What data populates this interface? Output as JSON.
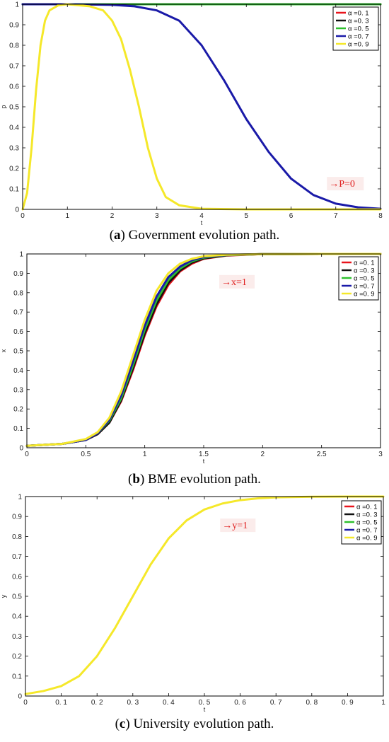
{
  "chart_data": [
    {
      "type": "line",
      "panel": "a",
      "caption": {
        "letter": "a",
        "text": "Government evolution path."
      },
      "xlabel": "t",
      "ylabel": "p",
      "xlim": [
        0,
        8
      ],
      "ylim": [
        0,
        1
      ],
      "xticks": [
        "0",
        "1",
        "2",
        "3",
        "4",
        "5",
        "6",
        "7",
        "8"
      ],
      "yticks": [
        "0",
        "0.1",
        "0.2",
        "0.3",
        "0.4",
        "0.5",
        "0.6",
        "0.7",
        "0.8",
        "0.9",
        "1"
      ],
      "legend_position": "top-right",
      "annotation": {
        "text": "→P=0",
        "x": 6.85,
        "y": 0.11
      },
      "series": [
        {
          "name": "α =0. 1",
          "color": "#e8141c",
          "x": [
            0,
            8
          ],
          "y": [
            1,
            1
          ]
        },
        {
          "name": "α =0. 3",
          "color": "#111111",
          "x": [
            0,
            8
          ],
          "y": [
            1,
            1
          ]
        },
        {
          "name": "α =0. 5",
          "color": "#2ec02e",
          "x": [
            0,
            8
          ],
          "y": [
            1,
            1
          ]
        },
        {
          "name": "α =0. 7",
          "color": "#1a1aa8",
          "x": [
            0,
            1,
            2,
            2.5,
            3,
            3.5,
            4,
            4.5,
            5,
            5.5,
            6,
            6.5,
            7,
            7.5,
            8
          ],
          "y": [
            1,
            1,
            0.997,
            0.99,
            0.97,
            0.92,
            0.8,
            0.63,
            0.44,
            0.28,
            0.15,
            0.07,
            0.028,
            0.01,
            0.003
          ]
        },
        {
          "name": "α =0. 9",
          "color": "#f5e82a",
          "x": [
            0,
            0.1,
            0.2,
            0.3,
            0.4,
            0.5,
            0.6,
            0.8,
            1,
            1.5,
            1.8,
            2,
            2.2,
            2.4,
            2.6,
            2.8,
            3,
            3.2,
            3.5,
            4,
            5,
            8
          ],
          "y": [
            0,
            0.08,
            0.3,
            0.58,
            0.8,
            0.92,
            0.97,
            0.995,
            1,
            0.99,
            0.97,
            0.92,
            0.83,
            0.68,
            0.5,
            0.3,
            0.15,
            0.06,
            0.02,
            0.003,
            0,
            0
          ]
        }
      ]
    },
    {
      "type": "line",
      "panel": "b",
      "caption": {
        "letter": "b",
        "text": "BME evolution path."
      },
      "xlabel": "t",
      "ylabel": "x",
      "xlim": [
        0,
        3
      ],
      "ylim": [
        0,
        1
      ],
      "xticks": [
        "0",
        "0.5",
        "1",
        "1.5",
        "2",
        "2.5",
        "3"
      ],
      "yticks": [
        "0",
        "0.1",
        "0.2",
        "0.3",
        "0.4",
        "0.5",
        "0.6",
        "0.7",
        "0.8",
        "0.9",
        "1"
      ],
      "legend_position": "top-right",
      "annotation": {
        "text": "→x=1",
        "x": 1.65,
        "y": 0.84
      },
      "series": [
        {
          "name": "α =0. 1",
          "color": "#e8141c",
          "x": [
            0,
            0.3,
            0.5,
            0.6,
            0.7,
            0.8,
            0.9,
            1,
            1.1,
            1.2,
            1.3,
            1.4,
            1.5,
            1.7,
            2,
            2.5,
            3
          ],
          "y": [
            0.01,
            0.02,
            0.04,
            0.07,
            0.13,
            0.24,
            0.4,
            0.58,
            0.73,
            0.84,
            0.91,
            0.95,
            0.975,
            0.992,
            0.999,
            1,
            1
          ]
        },
        {
          "name": "α =0. 3",
          "color": "#111111",
          "x": [
            0,
            0.3,
            0.5,
            0.6,
            0.7,
            0.8,
            0.9,
            1,
            1.1,
            1.2,
            1.3,
            1.4,
            1.5,
            1.7,
            2,
            2.5,
            3
          ],
          "y": [
            0.01,
            0.02,
            0.04,
            0.07,
            0.13,
            0.245,
            0.41,
            0.59,
            0.74,
            0.85,
            0.915,
            0.955,
            0.977,
            0.993,
            0.999,
            1,
            1
          ]
        },
        {
          "name": "α =0. 5",
          "color": "#2ec02e",
          "x": [
            0,
            0.3,
            0.5,
            0.6,
            0.7,
            0.8,
            0.9,
            1,
            1.1,
            1.2,
            1.3,
            1.4,
            1.5,
            1.7,
            2,
            2.5,
            3
          ],
          "y": [
            0.01,
            0.02,
            0.04,
            0.075,
            0.14,
            0.255,
            0.425,
            0.61,
            0.76,
            0.865,
            0.925,
            0.962,
            0.981,
            0.994,
            0.999,
            1,
            1
          ]
        },
        {
          "name": "α =0. 7",
          "color": "#1a1aa8",
          "x": [
            0,
            0.3,
            0.5,
            0.6,
            0.7,
            0.8,
            0.9,
            1,
            1.1,
            1.2,
            1.3,
            1.4,
            1.5,
            1.7,
            2,
            2.5,
            3
          ],
          "y": [
            0.01,
            0.02,
            0.04,
            0.075,
            0.145,
            0.27,
            0.445,
            0.63,
            0.78,
            0.88,
            0.935,
            0.968,
            0.984,
            0.995,
            0.999,
            1,
            1
          ]
        },
        {
          "name": "α =0. 9",
          "color": "#f5e82a",
          "x": [
            0,
            0.3,
            0.5,
            0.6,
            0.7,
            0.8,
            0.9,
            1,
            1.1,
            1.2,
            1.3,
            1.4,
            1.5,
            1.7,
            2,
            2.5,
            3
          ],
          "y": [
            0.01,
            0.02,
            0.045,
            0.08,
            0.155,
            0.29,
            0.475,
            0.66,
            0.81,
            0.9,
            0.95,
            0.975,
            0.988,
            0.996,
            0.999,
            1,
            1
          ]
        }
      ]
    },
    {
      "type": "line",
      "panel": "c",
      "caption": {
        "letter": "c",
        "text": "University evolution path."
      },
      "xlabel": "t",
      "ylabel": "y",
      "xlim": [
        0,
        1
      ],
      "ylim": [
        0,
        1
      ],
      "xticks": [
        "0",
        "0. 1",
        "0. 2",
        "0. 3",
        "0. 4",
        "0. 5",
        "0. 6",
        "0. 7",
        "0. 8",
        "0. 9",
        "1"
      ],
      "yticks": [
        "0",
        "0.1",
        "0.2",
        "0.3",
        "0.4",
        "0.5",
        "0.6",
        "0.7",
        "0.8",
        "0.9",
        "1"
      ],
      "legend_position": "top-right",
      "annotation": {
        "text": "→y=1",
        "x": 0.55,
        "y": 0.84
      },
      "series": [
        {
          "name": "α =0. 1",
          "color": "#e8141c",
          "x": [],
          "y": []
        },
        {
          "name": "α =0. 3",
          "color": "#111111",
          "x": [],
          "y": []
        },
        {
          "name": "α =0. 5",
          "color": "#2ec02e",
          "x": [],
          "y": []
        },
        {
          "name": "α =0. 7",
          "color": "#1a1aa8",
          "x": [],
          "y": []
        },
        {
          "name": "α =0. 9",
          "color": "#f5e82a",
          "x": [
            0,
            0.05,
            0.1,
            0.15,
            0.2,
            0.25,
            0.3,
            0.35,
            0.4,
            0.45,
            0.5,
            0.55,
            0.6,
            0.65,
            0.7,
            0.8,
            0.9,
            1
          ],
          "y": [
            0.01,
            0.025,
            0.05,
            0.1,
            0.2,
            0.34,
            0.5,
            0.66,
            0.79,
            0.88,
            0.935,
            0.965,
            0.982,
            0.991,
            0.996,
            0.999,
            1,
            1
          ]
        }
      ]
    }
  ]
}
